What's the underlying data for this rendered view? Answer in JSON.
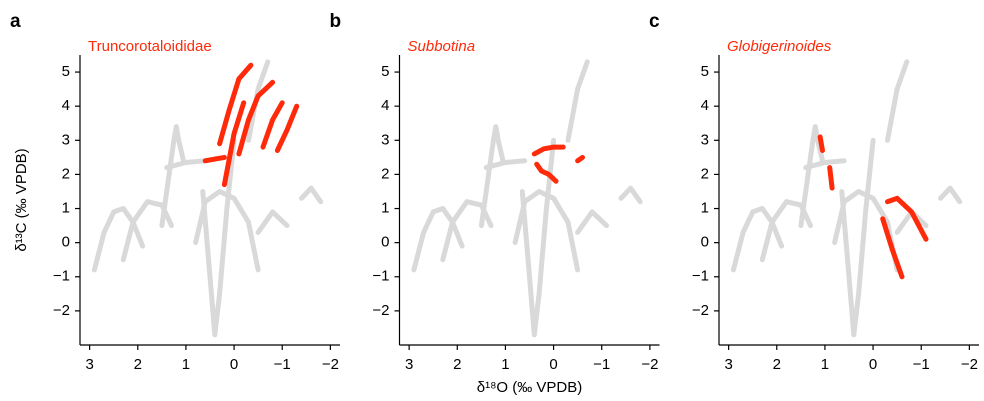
{
  "chart_data": [
    {
      "type": "line",
      "letter": "a",
      "title": "Truncorotaloididae",
      "title_color": "#ff2a0a",
      "title_style": "normal",
      "ylabel": "δ¹³C (‰ VPDB)",
      "xlim": [
        3.2,
        -2.2
      ],
      "ylim": [
        -3,
        5.5
      ],
      "xticks": [
        3,
        2,
        1,
        0,
        {
          "value": -1,
          "label": "−1"
        },
        {
          "value": -2,
          "label": "−2"
        }
      ],
      "yticks": [
        {
          "value": -2,
          "label": "−2"
        },
        {
          "value": -1,
          "label": "−1"
        },
        0,
        1,
        2,
        3,
        4,
        5
      ],
      "series": [
        {
          "color": "#d9d9d9",
          "x": [
            2.9,
            2.7,
            2.5,
            2.3,
            2.1,
            1.9
          ],
          "values": [
            -0.8,
            0.3,
            0.9,
            1.0,
            0.6,
            -0.1
          ]
        },
        {
          "color": "#d9d9d9",
          "x": [
            2.3,
            2.1,
            1.8,
            1.5,
            1.3
          ],
          "values": [
            -0.5,
            0.6,
            1.2,
            1.1,
            0.5
          ]
        },
        {
          "color": "#d9d9d9",
          "x": [
            1.5,
            1.35,
            1.25,
            1.2,
            1.15,
            1.05
          ],
          "values": [
            0.5,
            2.0,
            3.0,
            3.4,
            3.0,
            2.4
          ]
        },
        {
          "color": "#d9d9d9",
          "x": [
            0.65,
            0.5,
            0.4,
            0.3,
            0.15,
            0
          ],
          "values": [
            1.5,
            -1.0,
            -2.7,
            -1.5,
            1.0,
            3.0
          ]
        },
        {
          "color": "#d9d9d9",
          "x": [
            0.8,
            0.6,
            0.3,
            0,
            -0.3,
            -0.5
          ],
          "values": [
            0,
            1.2,
            1.5,
            1.3,
            0.6,
            -0.8
          ]
        },
        {
          "color": "#d9d9d9",
          "x": [
            1.4,
            1.0,
            0.6
          ],
          "values": [
            2.2,
            2.35,
            2.4
          ]
        },
        {
          "color": "#d9d9d9",
          "x": [
            -0.3,
            -0.5,
            -0.7
          ],
          "values": [
            3.0,
            4.5,
            5.3
          ]
        },
        {
          "color": "#d9d9d9",
          "x": [
            -0.5,
            -0.8,
            -1.1
          ],
          "values": [
            0.3,
            0.9,
            0.5
          ]
        },
        {
          "color": "#d9d9d9",
          "x": [
            -1.4,
            -1.6,
            -1.8
          ],
          "values": [
            1.3,
            1.6,
            1.2
          ]
        },
        {
          "color": "#ff2a0a",
          "x": [
            0.6,
            0.4,
            0.2
          ],
          "values": [
            2.4,
            2.45,
            2.5
          ]
        },
        {
          "color": "#ff2a0a",
          "x": [
            0.3,
            0.1,
            -0.1,
            -0.35
          ],
          "values": [
            2.9,
            3.9,
            4.8,
            5.2
          ]
        },
        {
          "color": "#ff2a0a",
          "x": [
            0.2,
            0,
            -0.2
          ],
          "values": [
            1.7,
            3.2,
            4.1
          ]
        },
        {
          "color": "#ff2a0a",
          "x": [
            -0.1,
            -0.3,
            -0.5,
            -0.8
          ],
          "values": [
            2.6,
            3.6,
            4.3,
            4.7
          ]
        },
        {
          "color": "#ff2a0a",
          "x": [
            -0.6,
            -0.8,
            -1.0
          ],
          "values": [
            2.8,
            3.6,
            4.1
          ]
        },
        {
          "color": "#ff2a0a",
          "x": [
            -0.9,
            -1.1,
            -1.3
          ],
          "values": [
            2.7,
            3.3,
            4.0
          ]
        }
      ]
    },
    {
      "type": "line",
      "letter": "b",
      "title": "Subbotina",
      "title_color": "#ff2a0a",
      "title_style": "italic",
      "xlabel": "δ¹⁸O (‰ VPDB)",
      "xlim": [
        3.2,
        -2.2
      ],
      "ylim": [
        -3,
        5.5
      ],
      "xticks": [
        3,
        2,
        1,
        0,
        {
          "value": -1,
          "label": "−1"
        },
        {
          "value": -2,
          "label": "−2"
        }
      ],
      "yticks": [
        {
          "value": -2,
          "label": "−2"
        },
        {
          "value": -1,
          "label": "−1"
        },
        0,
        1,
        2,
        3,
        4,
        5
      ],
      "series": [
        {
          "color": "#d9d9d9",
          "x": [
            2.9,
            2.7,
            2.5,
            2.3,
            2.1,
            1.9
          ],
          "values": [
            -0.8,
            0.3,
            0.9,
            1.0,
            0.6,
            -0.1
          ]
        },
        {
          "color": "#d9d9d9",
          "x": [
            2.3,
            2.1,
            1.8,
            1.5,
            1.3
          ],
          "values": [
            -0.5,
            0.6,
            1.2,
            1.1,
            0.5
          ]
        },
        {
          "color": "#d9d9d9",
          "x": [
            1.5,
            1.35,
            1.25,
            1.2,
            1.15,
            1.05
          ],
          "values": [
            0.5,
            2.0,
            3.0,
            3.4,
            3.0,
            2.4
          ]
        },
        {
          "color": "#d9d9d9",
          "x": [
            0.65,
            0.5,
            0.4,
            0.3,
            0.15,
            0
          ],
          "values": [
            1.5,
            -1.0,
            -2.7,
            -1.5,
            1.0,
            3.0
          ]
        },
        {
          "color": "#d9d9d9",
          "x": [
            0.8,
            0.6,
            0.3,
            0,
            -0.3,
            -0.5
          ],
          "values": [
            0,
            1.2,
            1.5,
            1.3,
            0.6,
            -0.8
          ]
        },
        {
          "color": "#d9d9d9",
          "x": [
            1.4,
            1.0,
            0.6
          ],
          "values": [
            2.2,
            2.35,
            2.4
          ]
        },
        {
          "color": "#d9d9d9",
          "x": [
            -0.3,
            -0.5,
            -0.7
          ],
          "values": [
            3.0,
            4.5,
            5.3
          ]
        },
        {
          "color": "#d9d9d9",
          "x": [
            -0.5,
            -0.8,
            -1.1
          ],
          "values": [
            0.3,
            0.9,
            0.5
          ]
        },
        {
          "color": "#d9d9d9",
          "x": [
            -1.4,
            -1.6,
            -1.8
          ],
          "values": [
            1.3,
            1.6,
            1.2
          ]
        },
        {
          "color": "#ff2a0a",
          "x": [
            0.4,
            0.2,
            0,
            -0.2
          ],
          "values": [
            2.6,
            2.75,
            2.8,
            2.8
          ]
        },
        {
          "color": "#ff2a0a",
          "x": [
            0.35,
            0.25,
            0.1,
            -0.05
          ],
          "values": [
            2.3,
            2.1,
            2.0,
            1.8
          ]
        },
        {
          "color": "#ff2a0a",
          "x": [
            -0.5,
            -0.6
          ],
          "values": [
            2.4,
            2.5
          ]
        }
      ]
    },
    {
      "type": "line",
      "letter": "c",
      "title": "Globigerinoides",
      "title_color": "#ff2a0a",
      "title_style": "italic",
      "xlim": [
        3.2,
        -2.2
      ],
      "ylim": [
        -3,
        5.5
      ],
      "xticks": [
        3,
        2,
        1,
        0,
        {
          "value": -1,
          "label": "−1"
        },
        {
          "value": -2,
          "label": "−2"
        }
      ],
      "yticks": [
        {
          "value": -2,
          "label": "−2"
        },
        {
          "value": -1,
          "label": "−1"
        },
        0,
        1,
        2,
        3,
        4,
        5
      ],
      "series": [
        {
          "color": "#d9d9d9",
          "x": [
            2.9,
            2.7,
            2.5,
            2.3,
            2.1,
            1.9
          ],
          "values": [
            -0.8,
            0.3,
            0.9,
            1.0,
            0.6,
            -0.1
          ]
        },
        {
          "color": "#d9d9d9",
          "x": [
            2.3,
            2.1,
            1.8,
            1.5,
            1.3
          ],
          "values": [
            -0.5,
            0.6,
            1.2,
            1.1,
            0.5
          ]
        },
        {
          "color": "#d9d9d9",
          "x": [
            1.5,
            1.35,
            1.25,
            1.2,
            1.15,
            1.05
          ],
          "values": [
            0.5,
            2.0,
            3.0,
            3.4,
            3.0,
            2.4
          ]
        },
        {
          "color": "#d9d9d9",
          "x": [
            0.65,
            0.5,
            0.4,
            0.3,
            0.15,
            0
          ],
          "values": [
            1.5,
            -1.0,
            -2.7,
            -1.5,
            1.0,
            3.0
          ]
        },
        {
          "color": "#d9d9d9",
          "x": [
            0.8,
            0.6,
            0.3,
            0,
            -0.3,
            -0.5
          ],
          "values": [
            0,
            1.2,
            1.5,
            1.3,
            0.6,
            -0.8
          ]
        },
        {
          "color": "#d9d9d9",
          "x": [
            1.4,
            1.0,
            0.6
          ],
          "values": [
            2.2,
            2.35,
            2.4
          ]
        },
        {
          "color": "#d9d9d9",
          "x": [
            -0.3,
            -0.5,
            -0.7
          ],
          "values": [
            3.0,
            4.5,
            5.3
          ]
        },
        {
          "color": "#d9d9d9",
          "x": [
            -0.5,
            -0.8,
            -1.1
          ],
          "values": [
            0.3,
            0.9,
            0.5
          ]
        },
        {
          "color": "#d9d9d9",
          "x": [
            -1.4,
            -1.6,
            -1.8
          ],
          "values": [
            1.3,
            1.6,
            1.2
          ]
        },
        {
          "color": "#ff2a0a",
          "x": [
            1.1,
            1.05
          ],
          "values": [
            3.1,
            2.7
          ]
        },
        {
          "color": "#ff2a0a",
          "x": [
            0.9,
            0.85
          ],
          "values": [
            2.2,
            1.6
          ]
        },
        {
          "color": "#ff2a0a",
          "x": [
            -0.2,
            -0.4,
            -0.6
          ],
          "values": [
            0.7,
            -0.2,
            -1.0
          ]
        },
        {
          "color": "#ff2a0a",
          "x": [
            -0.3,
            -0.5,
            -0.8,
            -1.1
          ],
          "values": [
            1.2,
            1.3,
            0.9,
            0.1
          ]
        }
      ]
    }
  ]
}
